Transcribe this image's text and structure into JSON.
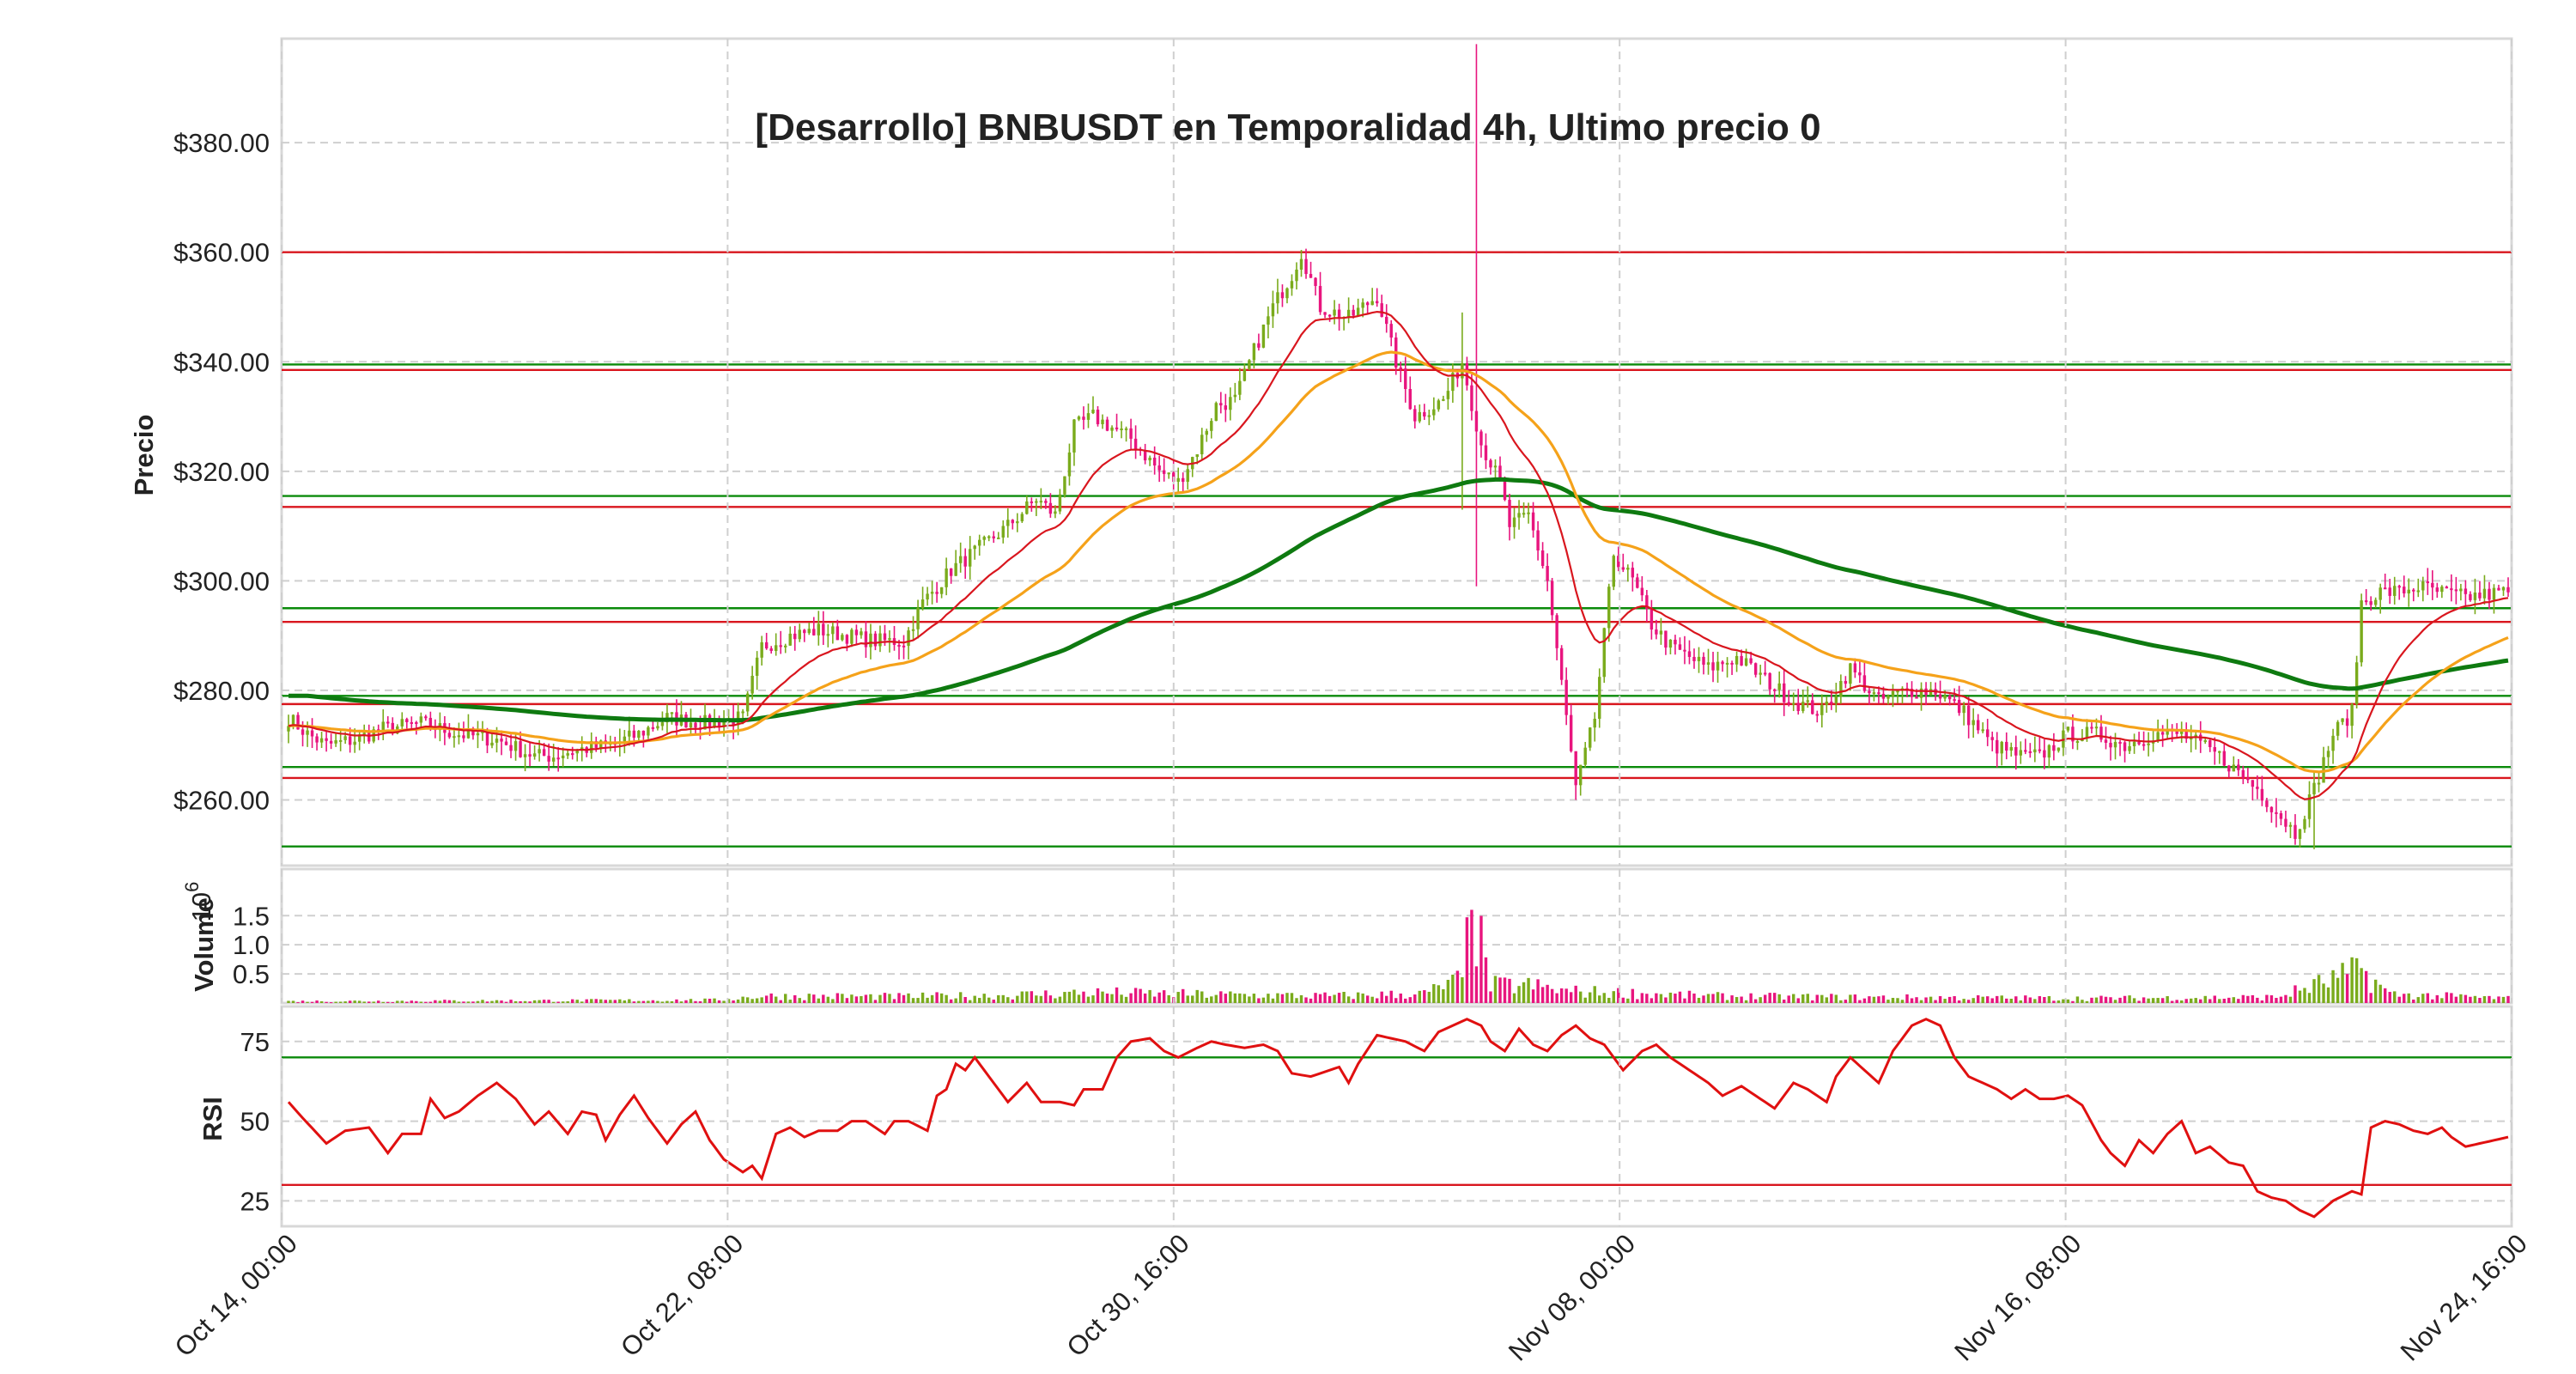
{
  "chart_data": {
    "type": "candlestick",
    "title": "[Desarrollo] BNBUSDT en Temporalidad 4h, Ultimo precio 0",
    "x_ticks": [
      "Oct 14, 00:00",
      "Oct 22, 08:00",
      "Oct 30, 16:00",
      "Nov 08, 00:00",
      "Nov 16, 08:00",
      "Nov 24, 16:00"
    ],
    "colors": {
      "up": "#7aab1c",
      "down": "#e8157e",
      "ema_fast": "#d9161e",
      "ema_mid": "#f5a21a",
      "ema_slow": "#0e7a10",
      "support": "#0a8a0a",
      "resistance": "#d9161e",
      "rsi": "#e01010",
      "volume_up": "#7aab1c",
      "volume_down": "#e8157e"
    },
    "price_panel": {
      "ylabel": "Precio",
      "ylim": [
        248,
        399
      ],
      "yticks": [
        260,
        280,
        300,
        320,
        340,
        360,
        380
      ],
      "ytick_labels": [
        "$260.00",
        "$280.00",
        "$300.00",
        "$320.00",
        "$340.00",
        "$360.00",
        "$380.00"
      ],
      "close_anchors": [
        [
          0,
          275
        ],
        [
          4,
          272
        ],
        [
          8,
          270
        ],
        [
          14,
          271
        ],
        [
          20,
          273
        ],
        [
          28,
          274
        ],
        [
          36,
          272
        ],
        [
          44,
          271
        ],
        [
          52,
          268
        ],
        [
          56,
          268
        ],
        [
          60,
          269
        ],
        [
          68,
          270
        ],
        [
          74,
          272
        ],
        [
          80,
          275
        ],
        [
          88,
          274
        ],
        [
          96,
          275
        ],
        [
          100,
          288
        ],
        [
          106,
          290
        ],
        [
          112,
          291
        ],
        [
          118,
          290
        ],
        [
          124,
          289
        ],
        [
          130,
          289
        ],
        [
          134,
          296
        ],
        [
          140,
          302
        ],
        [
          146,
          306
        ],
        [
          152,
          310
        ],
        [
          158,
          315
        ],
        [
          162,
          312
        ],
        [
          166,
          328
        ],
        [
          170,
          330
        ],
        [
          174,
          328
        ],
        [
          178,
          326
        ],
        [
          184,
          320
        ],
        [
          188,
          318
        ],
        [
          192,
          324
        ],
        [
          196,
          332
        ],
        [
          200,
          333
        ],
        [
          204,
          342
        ],
        [
          208,
          350
        ],
        [
          212,
          356
        ],
        [
          214,
          360
        ],
        [
          218,
          350
        ],
        [
          224,
          348
        ],
        [
          230,
          352
        ],
        [
          234,
          340
        ],
        [
          238,
          330
        ],
        [
          244,
          333
        ],
        [
          248,
          340
        ],
        [
          252,
          325
        ],
        [
          256,
          318
        ],
        [
          258,
          310
        ],
        [
          262,
          312
        ],
        [
          266,
          300
        ],
        [
          270,
          275
        ],
        [
          272,
          262
        ],
        [
          276,
          275
        ],
        [
          280,
          305
        ],
        [
          284,
          300
        ],
        [
          288,
          292
        ],
        [
          292,
          288
        ],
        [
          296,
          286
        ],
        [
          300,
          284
        ],
        [
          306,
          286
        ],
        [
          312,
          282
        ],
        [
          318,
          278
        ],
        [
          324,
          276
        ],
        [
          330,
          284
        ],
        [
          336,
          278
        ],
        [
          342,
          280
        ],
        [
          348,
          280
        ],
        [
          354,
          276
        ],
        [
          360,
          270
        ],
        [
          366,
          268
        ],
        [
          370,
          268
        ],
        [
          376,
          272
        ],
        [
          382,
          272
        ],
        [
          388,
          270
        ],
        [
          394,
          272
        ],
        [
          400,
          272
        ],
        [
          408,
          268
        ],
        [
          412,
          265
        ],
        [
          416,
          262
        ],
        [
          420,
          258
        ],
        [
          424,
          254
        ],
        [
          428,
          262
        ],
        [
          432,
          272
        ],
        [
          436,
          276
        ],
        [
          438,
          296
        ],
        [
          442,
          298
        ],
        [
          446,
          298
        ],
        [
          450,
          299
        ],
        [
          454,
          298
        ],
        [
          460,
          297
        ],
        [
          469,
          298
        ]
      ],
      "spikes": [
        {
          "i": 251,
          "high": 398,
          "low": 299
        },
        {
          "i": 248,
          "high": 349,
          "low": 313
        },
        {
          "i": 272,
          "high": 266,
          "low": 260
        },
        {
          "i": 428,
          "high": 265,
          "low": 251
        }
      ],
      "support_lines": [
        251.5,
        266,
        279,
        295,
        315.5,
        339.5
      ],
      "resistance_lines": [
        264,
        277.5,
        292.5,
        313.5,
        338.5,
        360
      ]
    },
    "volume_panel": {
      "ylabel": "Volume",
      "multiplier": "10",
      "exponent": "6",
      "ylim": [
        0,
        2.3
      ],
      "yticks": [
        0.5,
        1.0,
        1.5
      ],
      "ytick_labels": [
        "0.5",
        "1.0",
        "1.5"
      ],
      "base": 0.05,
      "anchors": [
        [
          0,
          0.03
        ],
        [
          90,
          0.05
        ],
        [
          100,
          0.12
        ],
        [
          130,
          0.11
        ],
        [
          150,
          0.13
        ],
        [
          170,
          0.18
        ],
        [
          190,
          0.15
        ],
        [
          220,
          0.12
        ],
        [
          240,
          0.16
        ],
        [
          248,
          0.4
        ],
        [
          250,
          1.6
        ],
        [
          254,
          0.3
        ],
        [
          262,
          0.3
        ],
        [
          270,
          0.2
        ],
        [
          280,
          0.18
        ],
        [
          300,
          0.12
        ],
        [
          330,
          0.1
        ],
        [
          380,
          0.08
        ],
        [
          420,
          0.1
        ],
        [
          438,
          0.55
        ],
        [
          444,
          0.15
        ],
        [
          469,
          0.08
        ]
      ]
    },
    "rsi_panel": {
      "ylabel": "RSI",
      "ylim": [
        17,
        86
      ],
      "yticks": [
        25,
        50,
        75
      ],
      "ytick_labels": [
        "25",
        "50",
        "75"
      ],
      "levels": [
        30,
        70
      ],
      "anchors": [
        [
          0,
          56
        ],
        [
          3,
          51
        ],
        [
          8,
          43
        ],
        [
          12,
          47
        ],
        [
          17,
          48
        ],
        [
          21,
          40
        ],
        [
          24,
          46
        ],
        [
          28,
          46
        ],
        [
          30,
          57
        ],
        [
          33,
          51
        ],
        [
          36,
          53
        ],
        [
          40,
          58
        ],
        [
          44,
          62
        ],
        [
          48,
          57
        ],
        [
          52,
          49
        ],
        [
          55,
          53
        ],
        [
          59,
          46
        ],
        [
          62,
          53
        ],
        [
          65,
          52
        ],
        [
          67,
          44
        ],
        [
          70,
          52
        ],
        [
          73,
          58
        ],
        [
          76,
          51
        ],
        [
          80,
          43
        ],
        [
          83,
          49
        ],
        [
          86,
          53
        ],
        [
          89,
          44
        ],
        [
          92,
          38
        ],
        [
          96,
          34
        ],
        [
          98,
          36
        ],
        [
          100,
          32
        ],
        [
          103,
          46
        ],
        [
          106,
          48
        ],
        [
          109,
          45
        ],
        [
          112,
          47
        ],
        [
          116,
          47
        ],
        [
          119,
          50
        ],
        [
          122,
          50
        ],
        [
          126,
          46
        ],
        [
          128,
          50
        ],
        [
          131,
          50
        ],
        [
          135,
          47
        ],
        [
          137,
          58
        ],
        [
          139,
          60
        ],
        [
          141,
          68
        ],
        [
          143,
          66
        ],
        [
          145,
          70
        ],
        [
          148,
          64
        ],
        [
          152,
          56
        ],
        [
          156,
          62
        ],
        [
          159,
          56
        ],
        [
          163,
          56
        ],
        [
          166,
          55
        ],
        [
          168,
          60
        ],
        [
          172,
          60
        ],
        [
          175,
          70
        ],
        [
          178,
          75
        ],
        [
          182,
          76
        ],
        [
          185,
          72
        ],
        [
          188,
          70
        ],
        [
          192,
          73
        ],
        [
          195,
          75
        ],
        [
          198,
          74
        ],
        [
          202,
          73
        ],
        [
          206,
          74
        ],
        [
          209,
          72
        ],
        [
          212,
          65
        ],
        [
          216,
          64
        ],
        [
          218,
          65
        ],
        [
          222,
          67
        ],
        [
          224,
          62
        ],
        [
          226,
          68
        ],
        [
          230,
          77
        ],
        [
          233,
          76
        ],
        [
          236,
          75
        ],
        [
          240,
          72
        ],
        [
          243,
          78
        ],
        [
          246,
          80
        ],
        [
          249,
          82
        ],
        [
          252,
          80
        ],
        [
          254,
          75
        ],
        [
          257,
          72
        ],
        [
          260,
          79
        ],
        [
          263,
          74
        ],
        [
          266,
          72
        ],
        [
          269,
          77
        ],
        [
          272,
          80
        ],
        [
          275,
          76
        ],
        [
          278,
          74
        ],
        [
          282,
          66
        ],
        [
          286,
          72
        ],
        [
          289,
          74
        ],
        [
          292,
          70
        ],
        [
          296,
          66
        ],
        [
          300,
          62
        ],
        [
          303,
          58
        ],
        [
          307,
          61
        ],
        [
          311,
          57
        ],
        [
          314,
          54
        ],
        [
          318,
          62
        ],
        [
          321,
          60
        ],
        [
          325,
          56
        ],
        [
          327,
          64
        ],
        [
          330,
          70
        ],
        [
          333,
          66
        ],
        [
          336,
          62
        ],
        [
          339,
          72
        ],
        [
          343,
          80
        ],
        [
          346,
          82
        ],
        [
          349,
          80
        ],
        [
          352,
          70
        ],
        [
          355,
          64
        ],
        [
          358,
          62
        ],
        [
          361,
          60
        ],
        [
          364,
          57
        ],
        [
          367,
          60
        ],
        [
          370,
          57
        ],
        [
          373,
          57
        ],
        [
          376,
          58
        ],
        [
          379,
          55
        ],
        [
          383,
          44
        ],
        [
          385,
          40
        ],
        [
          388,
          36
        ],
        [
          391,
          44
        ],
        [
          394,
          40
        ],
        [
          397,
          46
        ],
        [
          400,
          50
        ],
        [
          403,
          40
        ],
        [
          406,
          42
        ],
        [
          410,
          37
        ],
        [
          413,
          36
        ],
        [
          416,
          28
        ],
        [
          419,
          26
        ],
        [
          422,
          25
        ],
        [
          425,
          22
        ],
        [
          428,
          20
        ],
        [
          432,
          25
        ],
        [
          436,
          28
        ],
        [
          438,
          27
        ],
        [
          440,
          48
        ],
        [
          443,
          50
        ],
        [
          446,
          49
        ],
        [
          449,
          47
        ],
        [
          452,
          46
        ],
        [
          455,
          48
        ],
        [
          457,
          45
        ],
        [
          460,
          42
        ],
        [
          463,
          43
        ],
        [
          466,
          44
        ],
        [
          469,
          45
        ]
      ]
    }
  }
}
